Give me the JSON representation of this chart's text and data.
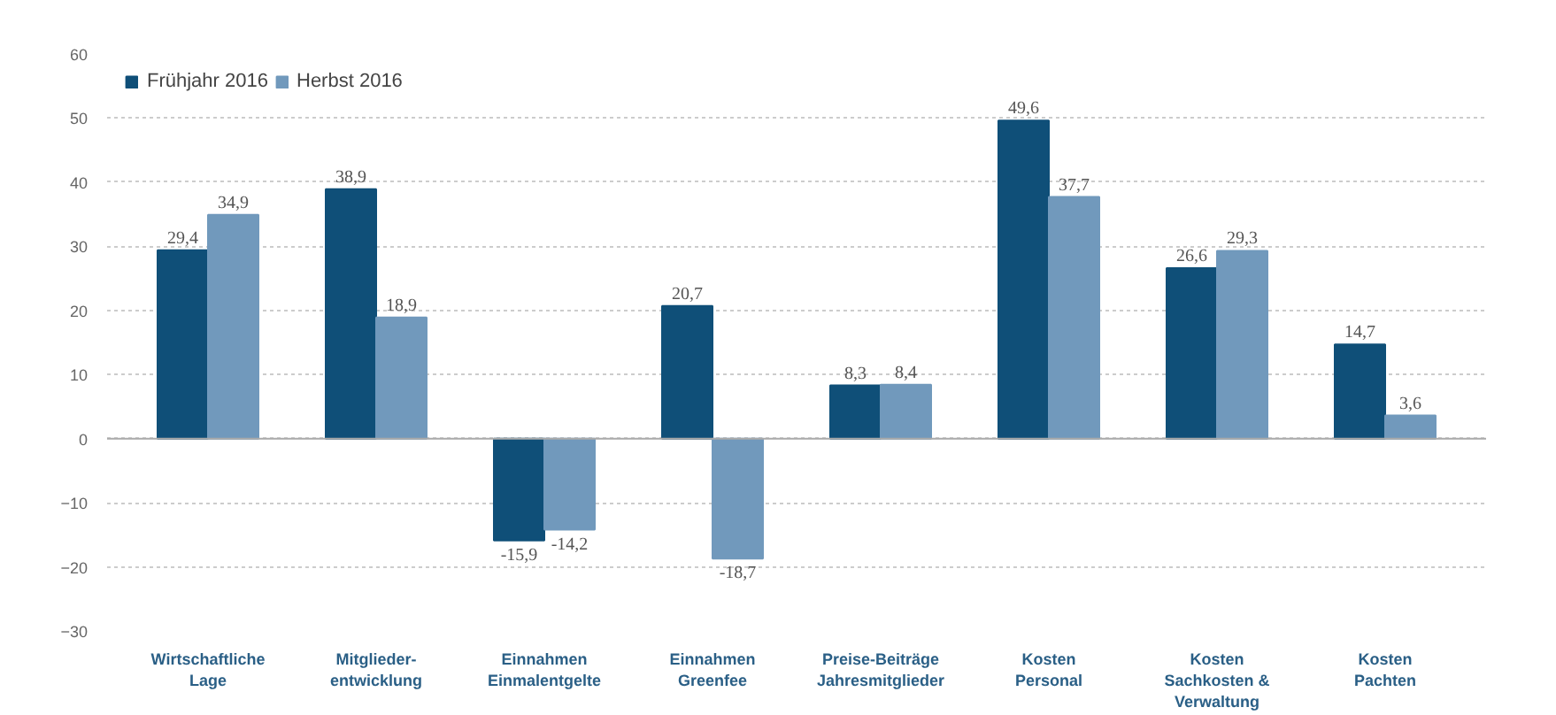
{
  "chart_data": {
    "type": "bar",
    "categories": [
      "Wirtschaftliche\nLage",
      "Mitglieder-\nentwicklung",
      "Einnahmen\nEinmalentgelte",
      "Einnahmen\nGreenfee",
      "Preise-Beiträge\nJahresmitglieder",
      "Kosten\nPersonal",
      "Kosten\nSachkosten &\nVerwaltung",
      "Kosten\nPachten"
    ],
    "series": [
      {
        "name": "Frühjahr 2016",
        "color": "#0f4f78",
        "values": [
          29.4,
          38.9,
          -15.9,
          20.7,
          8.3,
          49.6,
          26.6,
          14.7
        ],
        "value_labels": [
          "29,4",
          "38,9",
          "-15,9",
          "20,7",
          "8,3",
          "49,6",
          "26,6",
          "14,7"
        ]
      },
      {
        "name": "Herbst 2016",
        "color": "#7199bc",
        "values": [
          34.9,
          18.9,
          -14.2,
          -18.7,
          8.4,
          37.7,
          29.3,
          3.6
        ],
        "value_labels": [
          "34,9",
          "18,9",
          "-14,2",
          "-18,7",
          "8,4",
          "37,7",
          "29,3",
          "3,6"
        ]
      }
    ],
    "ylim": [
      -30,
      60
    ],
    "yticks": [
      -30,
      -20,
      -10,
      0,
      10,
      20,
      30,
      40,
      50,
      60
    ],
    "grid": "y",
    "legend": "top left"
  }
}
